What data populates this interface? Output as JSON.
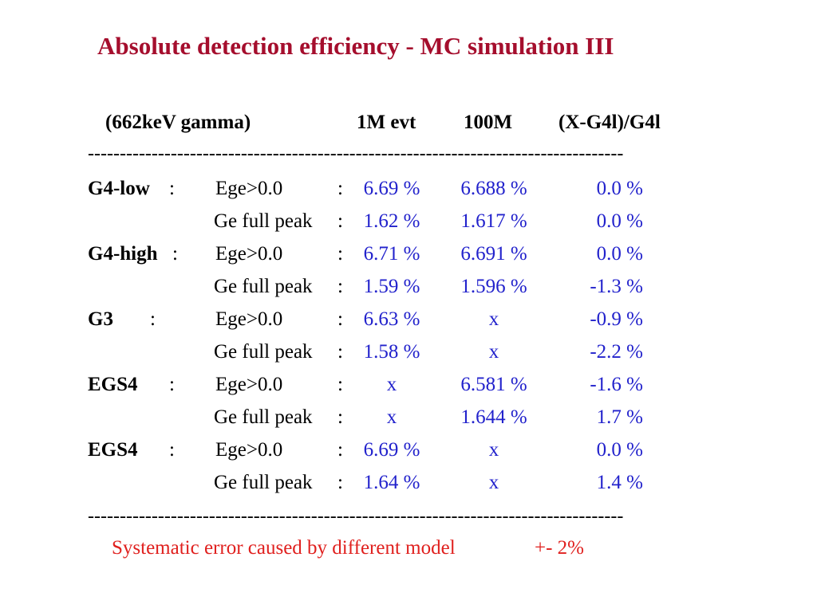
{
  "title": "Absolute detection efficiency - MC simulation III",
  "header": {
    "label": "(662keV gamma)",
    "col1": "1M evt",
    "col2": "100M",
    "col3": "(X-G4l)/G4l"
  },
  "divider": "------------------------------------------------------------------------------------",
  "rows": [
    {
      "name": "G4-low",
      "name_colon": ":",
      "cond": "Ege>0.0",
      "colon": ":",
      "v1": "6.69 %",
      "v2": "6.688 %",
      "v3": "0.0 %"
    },
    {
      "name": "",
      "name_colon": "",
      "cond": "Ge full peak",
      "colon": ":",
      "v1": "1.62 %",
      "v2": "1.617 %",
      "v3": "0.0 %"
    },
    {
      "name": "G4-high",
      "name_colon": ":",
      "cond": "Ege>0.0",
      "colon": ":",
      "v1": "6.71 %",
      "v2": "6.691 %",
      "v3": "0.0 %"
    },
    {
      "name": "",
      "name_colon": "",
      "cond": "Ge full peak",
      "colon": ":",
      "v1": "1.59 %",
      "v2": "1.596 %",
      "v3": "-1.3 %"
    },
    {
      "name": "G3",
      "name_colon": ":",
      "cond": "Ege>0.0",
      "colon": ":",
      "v1": "6.63 %",
      "v2": "x",
      "v3": "-0.9 %"
    },
    {
      "name": "",
      "name_colon": "",
      "cond": "Ge full peak",
      "colon": ":",
      "v1": "1.58 %",
      "v2": "x",
      "v3": "-2.2 %"
    },
    {
      "name": "EGS4",
      "name_colon": ":",
      "cond": "Ege>0.0",
      "colon": ":",
      "v1": "x",
      "v2": "6.581 %",
      "v3": "-1.6 %"
    },
    {
      "name": "",
      "name_colon": "",
      "cond": "Ge full peak",
      "colon": ":",
      "v1": "x",
      "v2": "1.644 %",
      "v3": "1.7 %"
    },
    {
      "name": "EGS4",
      "name_colon": ":",
      "cond": "Ege>0.0",
      "colon": ":",
      "v1": "6.69 %",
      "v2": "x",
      "v3": "0.0 %"
    },
    {
      "name": "",
      "name_colon": "",
      "cond": "Ge full peak",
      "colon": ":",
      "v1": "1.64 %",
      "v2": "x",
      "v3": "1.4 %"
    }
  ],
  "footer": {
    "text": "Systematic error caused by different model",
    "error": "+- 2%"
  },
  "colors": {
    "title": "#a50e2d",
    "values": "#2222cc",
    "footer": "#e0201e"
  }
}
